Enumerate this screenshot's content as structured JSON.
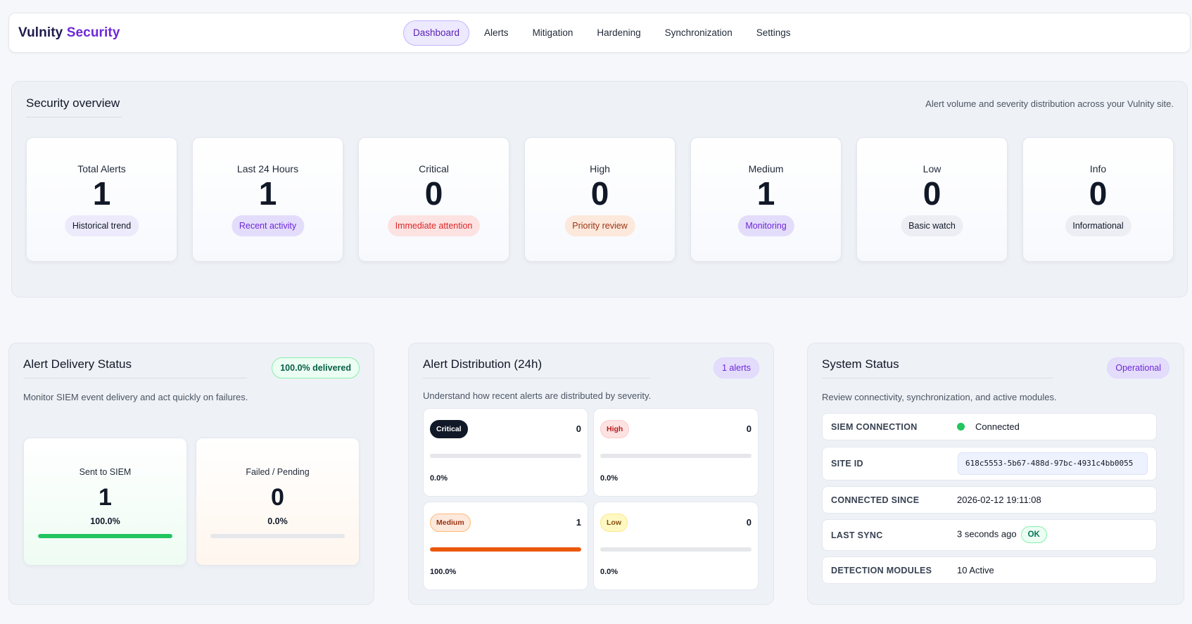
{
  "brand": {
    "part1": "Vulnity",
    "part2": "Security"
  },
  "nav": {
    "items": [
      {
        "label": "Dashboard"
      },
      {
        "label": "Alerts"
      },
      {
        "label": "Mitigation"
      },
      {
        "label": "Hardening"
      },
      {
        "label": "Synchronization"
      },
      {
        "label": "Settings"
      }
    ],
    "active": "Dashboard"
  },
  "overview": {
    "title": "Security overview",
    "subtitle": "Alert volume and severity distribution across your Vulnity site.",
    "cards": [
      {
        "label": "Total Alerts",
        "value": "1",
        "pill": "Historical trend"
      },
      {
        "label": "Last 24 Hours",
        "value": "1",
        "pill": "Recent activity"
      },
      {
        "label": "Critical",
        "value": "0",
        "pill": "Immediate attention"
      },
      {
        "label": "High",
        "value": "0",
        "pill": "Priority review"
      },
      {
        "label": "Medium",
        "value": "1",
        "pill": "Monitoring"
      },
      {
        "label": "Low",
        "value": "0",
        "pill": "Basic watch"
      },
      {
        "label": "Info",
        "value": "0",
        "pill": "Informational"
      }
    ]
  },
  "delivery": {
    "title": "Alert Delivery Status",
    "badge": "100.0% delivered",
    "subtitle": "Monitor SIEM event delivery and act quickly on failures.",
    "sent": {
      "label": "Sent to SIEM",
      "value": "1",
      "percent": "100.0%",
      "fraction": 1.0
    },
    "failed": {
      "label": "Failed / Pending",
      "value": "0",
      "percent": "0.0%",
      "fraction": 0.0
    }
  },
  "distribution": {
    "title": "Alert Distribution (24h)",
    "badge": "1 alerts",
    "subtitle": "Understand how recent alerts are distributed by severity.",
    "severities": [
      {
        "name": "Critical",
        "count": "0",
        "percent": "0.0%",
        "fraction": 0.0
      },
      {
        "name": "High",
        "count": "0",
        "percent": "0.0%",
        "fraction": 0.0
      },
      {
        "name": "Medium",
        "count": "1",
        "percent": "100.0%",
        "fraction": 1.0
      },
      {
        "name": "Low",
        "count": "0",
        "percent": "0.0%",
        "fraction": 0.0
      }
    ]
  },
  "system": {
    "title": "System Status",
    "badge": "Operational",
    "subtitle": "Review connectivity, synchronization, and active modules.",
    "rows": {
      "siem": {
        "key": "SIEM CONNECTION",
        "value": "Connected"
      },
      "site": {
        "key": "SITE ID",
        "value": "618c5553-5b67-488d-97bc-4931c4bb0055"
      },
      "since": {
        "key": "CONNECTED SINCE",
        "value": "2026-02-12 19:11:08"
      },
      "sync": {
        "key": "LAST SYNC",
        "value": "3 seconds ago",
        "status": "OK"
      },
      "modules": {
        "key": "DETECTION MODULES",
        "value": "10 Active"
      }
    }
  },
  "colors": {
    "accent": "#6d28d9",
    "success": "#22c55e",
    "medium_bar": "#ea580c"
  }
}
